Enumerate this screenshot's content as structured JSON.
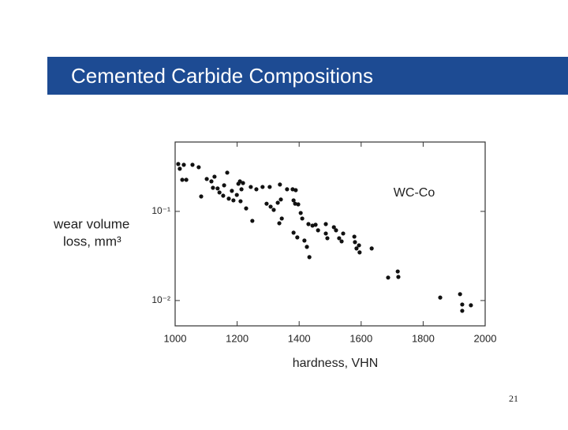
{
  "slide": {
    "title": "Cemented Carbide Compositions",
    "page_number": "21"
  },
  "chart_data": {
    "type": "scatter",
    "xlabel": "hardness, VHN",
    "ylabel": [
      "wear volume",
      "loss, mm³"
    ],
    "annotation": "WC-Co",
    "log_y": true,
    "color": "#111111",
    "xlim": [
      1000,
      2000
    ],
    "xticks": [
      1000,
      1200,
      1400,
      1600,
      1800,
      2000
    ],
    "ylim": [
      0.0052,
      0.6
    ],
    "yticks": [
      {
        "value": 0.1,
        "label": "10⁻¹"
      },
      {
        "value": 0.01,
        "label": "10⁻²"
      }
    ],
    "x": [
      1010,
      1015,
      1028,
      1023,
      1036,
      1056,
      1076,
      1084,
      1102,
      1117,
      1127,
      1122,
      1137,
      1143,
      1155,
      1168,
      1158,
      1173,
      1183,
      1188,
      1199,
      1204,
      1209,
      1214,
      1219,
      1211,
      1229,
      1244,
      1249,
      1262,
      1282,
      1295,
      1305,
      1308,
      1318,
      1331,
      1338,
      1341,
      1336,
      1344,
      1361,
      1379,
      1382,
      1387,
      1389,
      1397,
      1382,
      1394,
      1405,
      1410,
      1417,
      1425,
      1433,
      1430,
      1443,
      1453,
      1461,
      1486,
      1486,
      1491,
      1512,
      1519,
      1529,
      1537,
      1542,
      1578,
      1580,
      1585,
      1595,
      1593,
      1634,
      1687,
      1718,
      1720,
      1855,
      1919,
      1926,
      1926,
      1954
    ],
    "y": [
      0.34,
      0.301,
      0.333,
      0.226,
      0.226,
      0.333,
      0.313,
      0.147,
      0.231,
      0.217,
      0.245,
      0.184,
      0.181,
      0.163,
      0.15,
      0.272,
      0.196,
      0.139,
      0.17,
      0.133,
      0.153,
      0.204,
      0.217,
      0.177,
      0.208,
      0.13,
      0.108,
      0.188,
      0.0783,
      0.177,
      0.188,
      0.122,
      0.188,
      0.113,
      0.104,
      0.125,
      0.2,
      0.136,
      0.0736,
      0.0832,
      0.177,
      0.177,
      0.133,
      0.122,
      0.173,
      0.12,
      0.0577,
      0.0511,
      0.096,
      0.0832,
      0.0471,
      0.04,
      0.0307,
      0.0721,
      0.0693,
      0.0708,
      0.0614,
      0.0721,
      0.0565,
      0.05,
      0.0665,
      0.0614,
      0.05,
      0.0461,
      0.0565,
      0.0521,
      0.0452,
      0.0384,
      0.0347,
      0.0416,
      0.0384,
      0.0181,
      0.0212,
      0.0184,
      0.0108,
      0.0118,
      0.00903,
      0.00767,
      0.00885
    ]
  }
}
